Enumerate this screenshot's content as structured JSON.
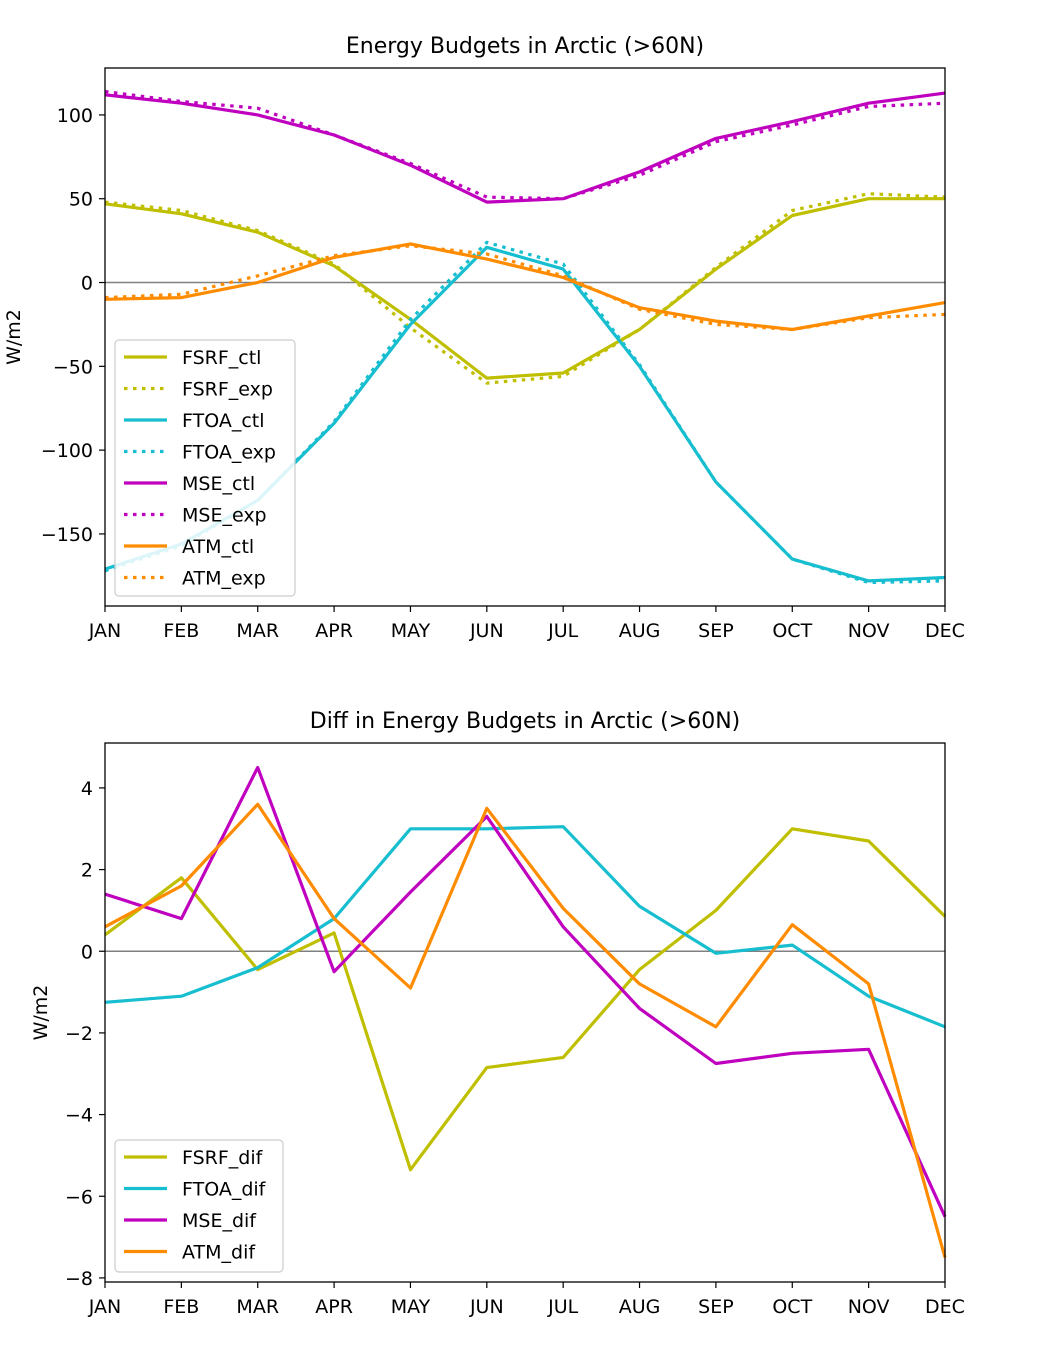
{
  "chart_data": [
    {
      "type": "line",
      "title": "Energy Budgets in Arctic (>60N)",
      "xlabel": "",
      "ylabel": "W/m2",
      "categories": [
        "JAN",
        "FEB",
        "MAR",
        "APR",
        "MAY",
        "JUN",
        "JUL",
        "AUG",
        "SEP",
        "OCT",
        "NOV",
        "DEC"
      ],
      "ylim": [
        -193,
        128
      ],
      "yticks": [
        100,
        50,
        0,
        -50,
        -100,
        -150
      ],
      "ytick_labels": [
        "100",
        "50",
        "0",
        "−50",
        "−100",
        "−150"
      ],
      "zero_line": true,
      "grid": false,
      "legend_position": "lower-left",
      "series": [
        {
          "name": "FSRF_ctl",
          "color": "#bfbf00",
          "style": "solid",
          "values": [
            47,
            41,
            30,
            10,
            -22,
            -57,
            -54,
            -28,
            8,
            40,
            50,
            50
          ]
        },
        {
          "name": "FSRF_exp",
          "color": "#bfbf00",
          "style": "dotted",
          "values": [
            48,
            43,
            31,
            11,
            -27,
            -60,
            -56,
            -28,
            9,
            43,
            53,
            51
          ]
        },
        {
          "name": "FTOA_ctl",
          "color": "#17becf",
          "style": "solid",
          "values": [
            -171,
            -156,
            -130,
            -84,
            -25,
            21,
            8,
            -50,
            -119,
            -165,
            -178,
            -176
          ]
        },
        {
          "name": "FTOA_exp",
          "color": "#17becf",
          "style": "dotted",
          "values": [
            -172,
            -157,
            -130,
            -83,
            -22,
            24,
            11,
            -49,
            -119,
            -165,
            -179,
            -178
          ]
        },
        {
          "name": "MSE_ctl",
          "color": "#bf00bf",
          "style": "solid",
          "values": [
            112,
            107,
            100,
            88,
            70,
            48,
            50,
            66,
            86,
            96,
            107,
            113
          ]
        },
        {
          "name": "MSE_exp",
          "color": "#bf00bf",
          "style": "dotted",
          "values": [
            114,
            108,
            104,
            88,
            71,
            51,
            50,
            64,
            84,
            94,
            105,
            107
          ]
        },
        {
          "name": "ATM_ctl",
          "color": "#ff8c00",
          "style": "solid",
          "values": [
            -10,
            -9,
            0,
            15,
            23,
            14,
            3,
            -15,
            -23,
            -28,
            -20,
            -12
          ]
        },
        {
          "name": "ATM_exp",
          "color": "#ff8c00",
          "style": "dotted",
          "values": [
            -9,
            -7,
            4,
            16,
            22,
            17,
            4,
            -16,
            -25,
            -28,
            -21,
            -19
          ]
        }
      ]
    },
    {
      "type": "line",
      "title": "Diff in Energy Budgets in Arctic (>60N)",
      "xlabel": "",
      "ylabel": "W/m2",
      "categories": [
        "JAN",
        "FEB",
        "MAR",
        "APR",
        "MAY",
        "JUN",
        "JUL",
        "AUG",
        "SEP",
        "OCT",
        "NOV",
        "DEC"
      ],
      "ylim": [
        -8.1,
        5.1
      ],
      "yticks": [
        4,
        2,
        0,
        -2,
        -4,
        -6,
        -8
      ],
      "ytick_labels": [
        "4",
        "2",
        "0",
        "−2",
        "−4",
        "−6",
        "−8"
      ],
      "zero_line": true,
      "grid": false,
      "legend_position": "lower-left",
      "series": [
        {
          "name": "FSRF_dif",
          "color": "#bfbf00",
          "style": "solid",
          "values": [
            0.4,
            1.8,
            -0.45,
            0.45,
            -5.35,
            -2.85,
            -2.6,
            -0.45,
            1.0,
            3.0,
            2.7,
            0.85
          ]
        },
        {
          "name": "FTOA_dif",
          "color": "#17becf",
          "style": "solid",
          "values": [
            -1.25,
            -1.1,
            -0.4,
            0.8,
            3.0,
            3.0,
            3.05,
            1.1,
            -0.05,
            0.15,
            -1.1,
            -1.85
          ]
        },
        {
          "name": "MSE_dif",
          "color": "#bf00bf",
          "style": "solid",
          "values": [
            1.4,
            0.8,
            4.5,
            -0.5,
            1.45,
            3.3,
            0.6,
            -1.4,
            -2.75,
            -2.5,
            -2.4,
            -6.5
          ]
        },
        {
          "name": "ATM_dif",
          "color": "#ff8c00",
          "style": "solid",
          "values": [
            0.6,
            1.6,
            3.6,
            0.8,
            -0.9,
            3.5,
            1.05,
            -0.8,
            -1.85,
            0.65,
            -0.8,
            -7.5
          ]
        }
      ]
    }
  ]
}
